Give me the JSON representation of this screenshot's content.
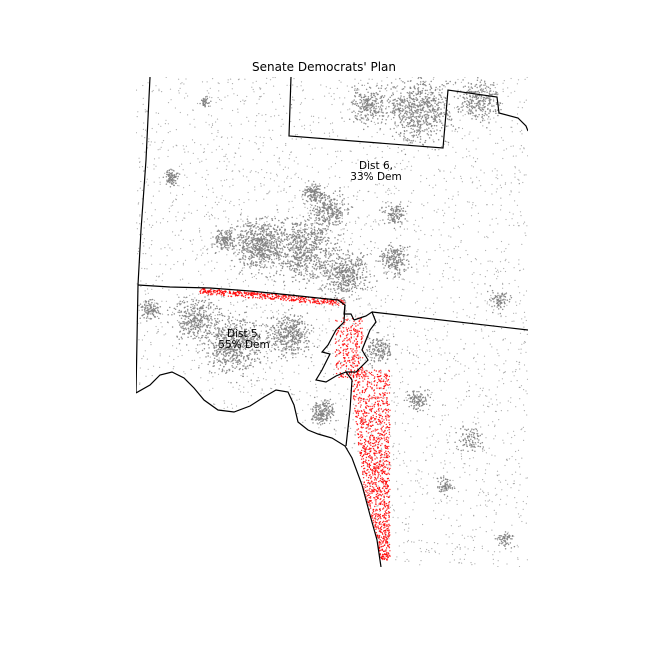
{
  "map": {
    "title": "Senate Democrats' Plan",
    "colors": {
      "population_dots": "#808080",
      "highlight_dots": "#ff0000",
      "district_lines": "#000000",
      "background": "#ffffff"
    },
    "districts": [
      {
        "name": "Dist 5,",
        "dem_share": "55% Dem"
      },
      {
        "name": "Dist 6,",
        "dem_share": "33% Dem"
      }
    ]
  }
}
